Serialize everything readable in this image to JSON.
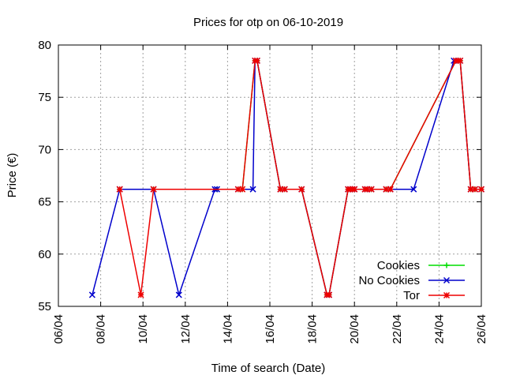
{
  "chart_data": {
    "type": "line",
    "title": "Prices for otp on 06-10-2019",
    "xlabel": "Time of search (Date)",
    "ylabel": "Price (€)",
    "xlim": [
      6,
      26
    ],
    "ylim": [
      55,
      80
    ],
    "x_ticks": [
      {
        "value": 6,
        "label": "06/04"
      },
      {
        "value": 8,
        "label": "08/04"
      },
      {
        "value": 10,
        "label": "10/04"
      },
      {
        "value": 12,
        "label": "12/04"
      },
      {
        "value": 14,
        "label": "14/04"
      },
      {
        "value": 16,
        "label": "16/04"
      },
      {
        "value": 18,
        "label": "18/04"
      },
      {
        "value": 20,
        "label": "20/04"
      },
      {
        "value": 22,
        "label": "22/04"
      },
      {
        "value": 24,
        "label": "24/04"
      },
      {
        "value": 26,
        "label": "26/04"
      }
    ],
    "y_ticks": [
      55,
      60,
      65,
      70,
      75,
      80
    ],
    "grid": true,
    "legend_position": "bottom-right",
    "series": [
      {
        "name": "Cookies",
        "color": "#00dd00",
        "marker": "plus",
        "points": [
          [
            8.9,
            66.2
          ],
          [
            10.5,
            66.2
          ],
          [
            13.5,
            66.2
          ],
          [
            14.5,
            66.2
          ],
          [
            14.7,
            66.2
          ],
          [
            15.3,
            78.5
          ],
          [
            15.4,
            78.5
          ],
          [
            16.5,
            66.2
          ],
          [
            16.7,
            66.2
          ],
          [
            17.5,
            66.2
          ],
          [
            18.7,
            56.1
          ],
          [
            18.8,
            56.1
          ],
          [
            19.7,
            66.2
          ],
          [
            19.8,
            66.2
          ],
          [
            19.9,
            66.2
          ],
          [
            20.0,
            66.2
          ],
          [
            20.5,
            66.2
          ],
          [
            20.6,
            66.2
          ],
          [
            20.8,
            66.2
          ],
          [
            21.5,
            66.2
          ],
          [
            21.7,
            66.2
          ],
          [
            24.8,
            78.5
          ],
          [
            24.9,
            78.5
          ],
          [
            25.0,
            78.5
          ],
          [
            25.5,
            66.2
          ],
          [
            25.7,
            66.2
          ],
          [
            26.0,
            66.2
          ]
        ]
      },
      {
        "name": "No Cookies",
        "color": "#0000cc",
        "marker": "cross",
        "points": [
          [
            7.6,
            56.1
          ],
          [
            8.9,
            66.2
          ],
          [
            10.5,
            66.2
          ],
          [
            11.7,
            56.1
          ],
          [
            13.4,
            66.2
          ],
          [
            13.5,
            66.2
          ],
          [
            14.5,
            66.2
          ],
          [
            15.2,
            66.2
          ],
          [
            15.3,
            78.5
          ],
          [
            15.4,
            78.5
          ],
          [
            16.5,
            66.2
          ],
          [
            16.7,
            66.2
          ],
          [
            17.5,
            66.2
          ],
          [
            18.7,
            56.1
          ],
          [
            18.8,
            56.1
          ],
          [
            19.7,
            66.2
          ],
          [
            19.8,
            66.2
          ],
          [
            19.9,
            66.2
          ],
          [
            20.0,
            66.2
          ],
          [
            20.5,
            66.2
          ],
          [
            20.6,
            66.2
          ],
          [
            20.8,
            66.2
          ],
          [
            21.5,
            66.2
          ],
          [
            21.7,
            66.2
          ],
          [
            22.8,
            66.2
          ],
          [
            24.7,
            78.5
          ],
          [
            24.8,
            78.5
          ],
          [
            25.0,
            78.5
          ],
          [
            25.5,
            66.2
          ],
          [
            25.7,
            66.2
          ],
          [
            26.0,
            66.2
          ]
        ]
      },
      {
        "name": "Tor",
        "color": "#ee0000",
        "marker": "star",
        "points": [
          [
            8.9,
            66.2
          ],
          [
            9.9,
            56.1
          ],
          [
            10.5,
            66.2
          ],
          [
            14.5,
            66.2
          ],
          [
            14.7,
            66.2
          ],
          [
            15.3,
            78.5
          ],
          [
            15.4,
            78.5
          ],
          [
            16.5,
            66.2
          ],
          [
            16.7,
            66.2
          ],
          [
            17.5,
            66.2
          ],
          [
            18.7,
            56.1
          ],
          [
            18.8,
            56.1
          ],
          [
            19.7,
            66.2
          ],
          [
            19.8,
            66.2
          ],
          [
            19.9,
            66.2
          ],
          [
            20.0,
            66.2
          ],
          [
            20.5,
            66.2
          ],
          [
            20.6,
            66.2
          ],
          [
            20.8,
            66.2
          ],
          [
            21.5,
            66.2
          ],
          [
            21.7,
            66.2
          ],
          [
            24.8,
            78.5
          ],
          [
            24.9,
            78.5
          ],
          [
            25.0,
            78.5
          ],
          [
            25.5,
            66.2
          ],
          [
            25.7,
            66.2
          ],
          [
            26.0,
            66.2
          ]
        ]
      }
    ]
  }
}
